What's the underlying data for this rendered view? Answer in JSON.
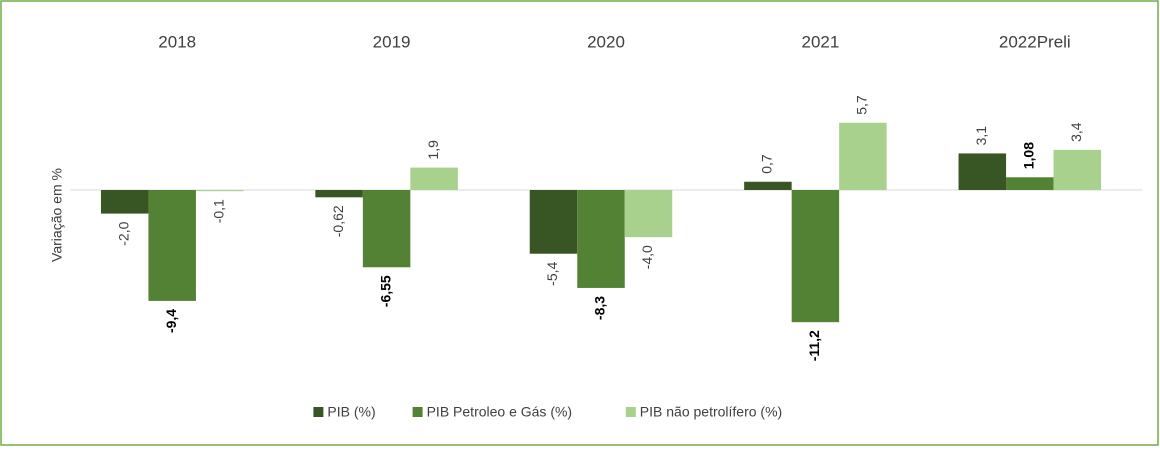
{
  "chart_data": {
    "type": "bar",
    "categories": [
      "2018",
      "2019",
      "2020",
      "2021",
      "2022Preli"
    ],
    "ylabel": "Variação em %",
    "series": [
      {
        "name": "PIB (%)",
        "color": "#375623",
        "values": [
          -2.0,
          -0.62,
          -5.4,
          0.7,
          3.1
        ],
        "value_labels": [
          "-2,0",
          "-0,62",
          "-5,4",
          "0,7",
          "3,1"
        ]
      },
      {
        "name": "PIB Petroleo e Gás (%)",
        "color": "#548235",
        "values": [
          -9.4,
          -6.55,
          -8.3,
          -11.2,
          1.08
        ],
        "value_labels": [
          "-9,4",
          "-6,55",
          "-8,3",
          "-11,2",
          "1,08"
        ]
      },
      {
        "name": "PIB não petrolífero (%)",
        "color": "#a9d18e",
        "values": [
          -0.1,
          1.9,
          -4.0,
          5.7,
          3.4
        ],
        "value_labels": [
          "-0,1",
          "1,9",
          "-4,0",
          "5,7",
          "3,4"
        ]
      }
    ],
    "ylim": [
      -15,
      10
    ],
    "legend": "bottom"
  }
}
